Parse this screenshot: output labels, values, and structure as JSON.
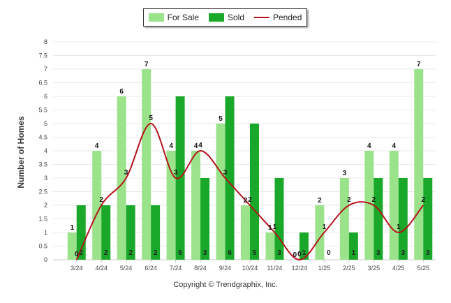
{
  "legend": {
    "for_sale": "For Sale",
    "sold": "Sold",
    "pended": "Pended"
  },
  "credit": "Copyright © Trendgraphix, Inc.",
  "colors": {
    "for_sale": "#9be38b",
    "sold": "#1aa82a",
    "pended": "#b5121b",
    "grid": "#e8e8e8"
  },
  "chart_data": {
    "type": "bar",
    "title": "",
    "xlabel": "",
    "ylabel": "Number of Homes",
    "ylim": [
      0,
      8
    ],
    "yticks": [
      "0",
      "0.5",
      "1",
      "1.5",
      "2",
      "2.5",
      "3",
      "3.5",
      "4",
      "4.5",
      "5",
      "5.5",
      "6",
      "6.5",
      "7",
      "7.5",
      "8"
    ],
    "grid": true,
    "legend_position": "top",
    "categories": [
      "3/24",
      "4/24",
      "5/24",
      "6/24",
      "7/24",
      "8/24",
      "9/24",
      "10/24",
      "11/24",
      "12/24",
      "1/25",
      "2/25",
      "3/25",
      "4/25",
      "5/25"
    ],
    "series": [
      {
        "name": "For Sale",
        "kind": "bar",
        "values": [
          1,
          4,
          6,
          7,
          4,
          4,
          5,
          2,
          1,
          0,
          2,
          3,
          4,
          4,
          7
        ]
      },
      {
        "name": "Sold",
        "kind": "bar",
        "values": [
          2,
          2,
          2,
          2,
          6,
          3,
          6,
          5,
          3,
          1,
          0,
          1,
          3,
          3,
          3
        ]
      },
      {
        "name": "Pended",
        "kind": "line",
        "values": [
          0,
          2,
          3,
          5,
          3,
          4,
          3,
          2,
          1,
          0,
          1,
          2,
          2,
          1,
          2
        ]
      }
    ]
  }
}
